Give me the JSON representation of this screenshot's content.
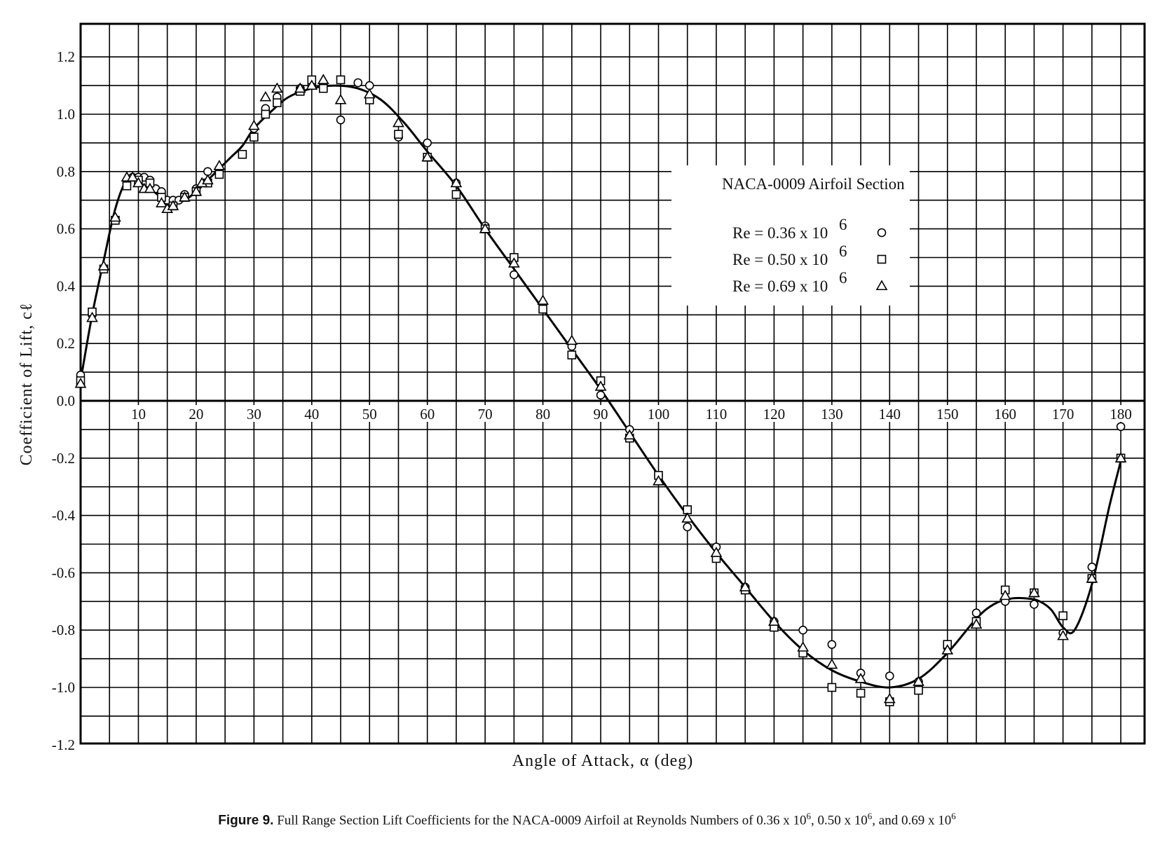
{
  "chart_data": {
    "type": "scatter",
    "title": "NACA-0009 Airfoil Section",
    "xlabel": "Angle of Attack, α (deg)",
    "ylabel": "Coefficient of Lift, cℓ",
    "xlim": [
      0,
      185
    ],
    "ylim": [
      -1.2,
      1.3
    ],
    "x_ticks": [
      10,
      20,
      30,
      40,
      50,
      60,
      70,
      80,
      90,
      100,
      110,
      120,
      130,
      140,
      150,
      160,
      170,
      180
    ],
    "y_ticks": [
      1.2,
      1.0,
      0.8,
      0.6,
      0.4,
      0.2,
      0.0,
      -0.2,
      -0.4,
      -0.6,
      -0.8,
      -1.0,
      -1.2
    ],
    "y_tick_labels": [
      "1.2",
      "1.0",
      "0.8",
      "0.6",
      "0.4",
      "0.2",
      "0.0",
      "-0.2",
      "-0.4",
      "-0.6",
      "-0.8",
      "-1.0",
      "-1.2"
    ],
    "grid": true,
    "legend_position": "right-upper",
    "series": [
      {
        "name": "Re = 0.36 x 10^6",
        "marker": "circle",
        "x": [
          0,
          2,
          4,
          6,
          8,
          9,
          10,
          11,
          12,
          13,
          14,
          15,
          16,
          17,
          18,
          20,
          22,
          24,
          28,
          30,
          32,
          34,
          38,
          40,
          42,
          45,
          48,
          50,
          55,
          60,
          65,
          70,
          75,
          80,
          85,
          90,
          95,
          100,
          105,
          110,
          115,
          120,
          125,
          130,
          135,
          140,
          145,
          150,
          155,
          160,
          165,
          170,
          175,
          180
        ],
        "y": [
          0.09,
          0.3,
          0.46,
          0.63,
          0.76,
          0.78,
          0.78,
          0.78,
          0.77,
          0.74,
          0.73,
          0.7,
          0.7,
          0.7,
          0.72,
          0.74,
          0.8,
          0.81,
          0.86,
          0.95,
          1.02,
          1.06,
          1.09,
          1.1,
          1.11,
          0.98,
          1.11,
          1.1,
          0.92,
          0.9,
          0.76,
          0.61,
          0.44,
          0.34,
          0.19,
          0.02,
          -0.1,
          -0.26,
          -0.44,
          -0.51,
          -0.65,
          -0.77,
          -0.8,
          -0.85,
          -0.95,
          -0.96,
          -0.98,
          -0.86,
          -0.74,
          -0.7,
          -0.71,
          -0.81,
          -0.58,
          -0.09
        ]
      },
      {
        "name": "Re = 0.50 x 10^6",
        "marker": "square",
        "x": [
          0,
          2,
          4,
          6,
          8,
          10,
          12,
          14,
          16,
          18,
          20,
          22,
          24,
          28,
          30,
          32,
          34,
          38,
          40,
          42,
          45,
          50,
          55,
          60,
          65,
          70,
          75,
          80,
          85,
          90,
          95,
          100,
          105,
          110,
          115,
          120,
          125,
          130,
          135,
          140,
          145,
          150,
          155,
          160,
          165,
          170,
          175,
          180
        ],
        "y": [
          0.07,
          0.31,
          0.46,
          0.63,
          0.75,
          0.77,
          0.76,
          0.71,
          0.68,
          0.71,
          0.73,
          0.76,
          0.79,
          0.86,
          0.92,
          1.0,
          1.04,
          1.08,
          1.12,
          1.09,
          1.12,
          1.05,
          0.93,
          0.85,
          0.72,
          0.6,
          0.5,
          0.32,
          0.16,
          0.07,
          -0.13,
          -0.26,
          -0.38,
          -0.55,
          -0.66,
          -0.79,
          -0.88,
          -1.0,
          -1.02,
          -1.05,
          -1.01,
          -0.85,
          -0.77,
          -0.66,
          -0.67,
          -0.75,
          -0.62,
          -0.2
        ]
      },
      {
        "name": "Re = 0.69 x 10^6",
        "marker": "triangle",
        "x": [
          0,
          2,
          4,
          6,
          8,
          9,
          10,
          11,
          12,
          14,
          15,
          16,
          18,
          20,
          21,
          22,
          24,
          30,
          32,
          34,
          38,
          40,
          42,
          45,
          50,
          55,
          60,
          65,
          70,
          75,
          80,
          85,
          90,
          95,
          100,
          105,
          110,
          115,
          120,
          125,
          130,
          135,
          140,
          145,
          150,
          155,
          160,
          165,
          170,
          175,
          180
        ],
        "y": [
          0.06,
          0.29,
          0.47,
          0.64,
          0.78,
          0.78,
          0.76,
          0.74,
          0.74,
          0.69,
          0.67,
          0.68,
          0.71,
          0.73,
          0.76,
          0.77,
          0.82,
          0.96,
          1.06,
          1.09,
          1.09,
          1.1,
          1.12,
          1.05,
          1.07,
          0.97,
          0.85,
          0.76,
          0.6,
          0.48,
          0.35,
          0.21,
          0.05,
          -0.12,
          -0.28,
          -0.41,
          -0.53,
          -0.65,
          -0.77,
          -0.86,
          -0.92,
          -0.97,
          -1.04,
          -0.98,
          -0.87,
          -0.78,
          -0.68,
          -0.67,
          -0.82,
          -0.62,
          -0.2
        ]
      }
    ],
    "fit_curve": {
      "x": [
        0,
        2,
        4,
        6,
        8,
        10,
        12,
        14,
        16,
        18,
        20,
        22,
        24,
        26,
        28,
        30,
        33,
        36,
        40,
        44,
        48,
        52,
        56,
        60,
        65,
        70,
        75,
        80,
        85,
        90,
        95,
        100,
        105,
        110,
        115,
        120,
        125,
        130,
        135,
        140,
        145,
        150,
        155,
        158,
        161,
        164,
        166,
        168,
        170,
        172,
        175,
        178,
        180
      ],
      "y": [
        0.07,
        0.3,
        0.49,
        0.67,
        0.77,
        0.76,
        0.74,
        0.71,
        0.69,
        0.7,
        0.73,
        0.77,
        0.81,
        0.85,
        0.89,
        0.95,
        1.01,
        1.06,
        1.09,
        1.1,
        1.09,
        1.05,
        0.97,
        0.87,
        0.75,
        0.6,
        0.46,
        0.32,
        0.18,
        0.04,
        -0.11,
        -0.26,
        -0.4,
        -0.53,
        -0.65,
        -0.77,
        -0.87,
        -0.94,
        -0.98,
        -1.0,
        -0.97,
        -0.88,
        -0.76,
        -0.71,
        -0.69,
        -0.69,
        -0.7,
        -0.73,
        -0.79,
        -0.8,
        -0.64,
        -0.37,
        -0.21
      ]
    }
  },
  "legend": {
    "title": "NACA-0009 Airfoil Section",
    "entries": [
      {
        "label": "Re = 0.36 x 10",
        "exp": "6",
        "marker": "circle"
      },
      {
        "label": "Re = 0.50 x 10",
        "exp": "6",
        "marker": "square"
      },
      {
        "label": "Re = 0.69 x 10",
        "exp": "6",
        "marker": "triangle"
      }
    ]
  },
  "caption": {
    "figure_label": "Figure 9.",
    "text_before": "Full Range Section Lift Coefficients for the NACA-0009 Airfoil at Reynolds Numbers of 0.36 x 10",
    "exp1": "6",
    "text_mid1": ", 0.50 x 10",
    "exp2": "6",
    "text_mid2": ", and 0.69 x 10",
    "exp3": "6"
  }
}
